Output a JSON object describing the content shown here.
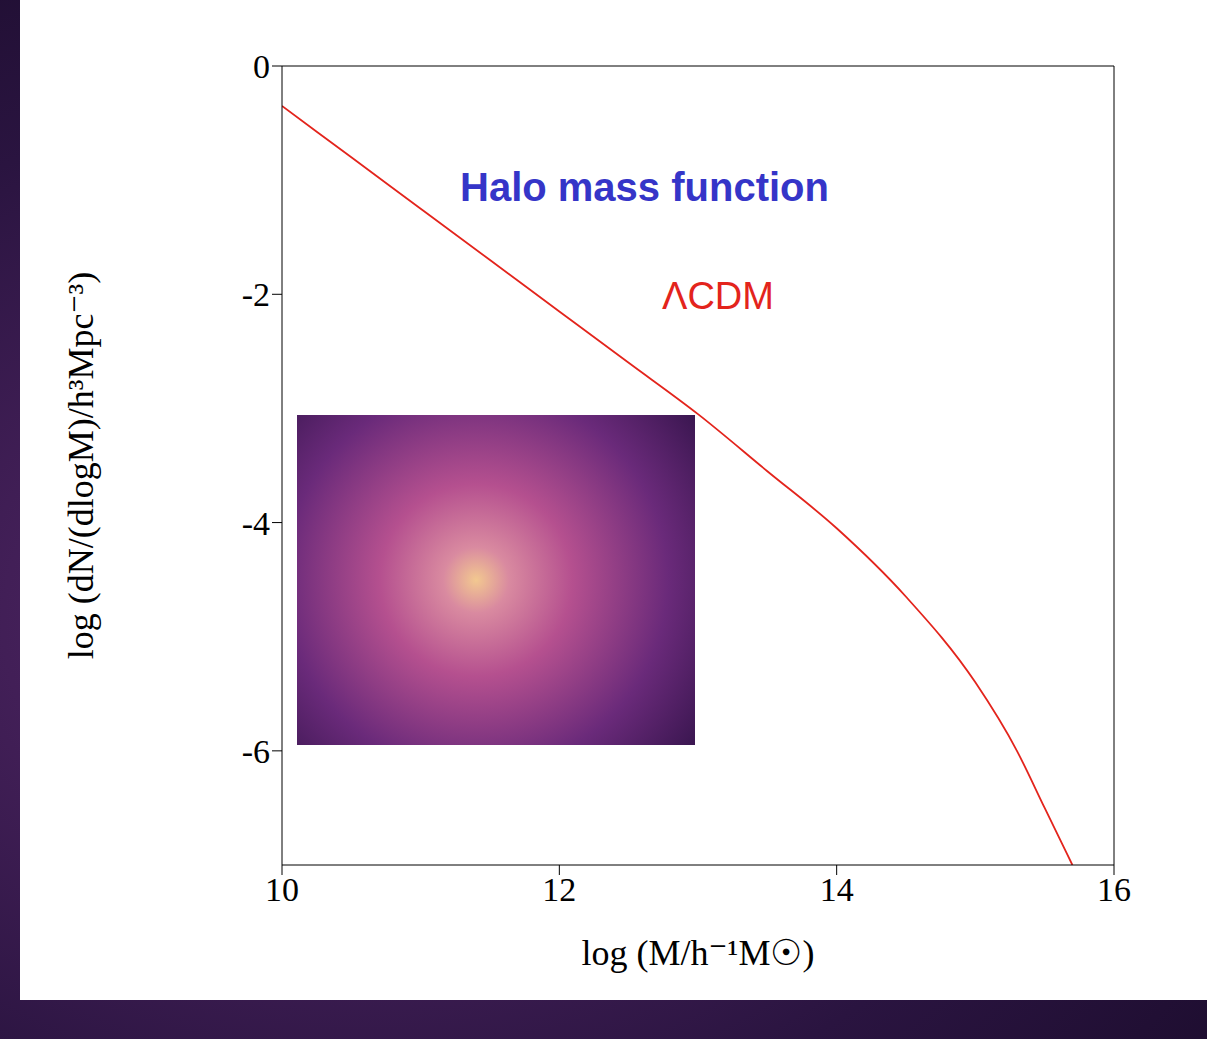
{
  "chart_data": {
    "type": "line",
    "title": "Halo mass function",
    "x_label": "log (M/h⁻¹M☉)",
    "y_label": "log (dN/(dlogM)/h³Mpc⁻³)",
    "x": [
      10,
      10.5,
      11,
      11.5,
      12,
      12.5,
      13,
      13.5,
      14,
      14.5,
      15,
      15.3,
      15.5,
      15.7
    ],
    "series": [
      {
        "name": "ΛCDM",
        "color": "#e3241c",
        "values": [
          -0.35,
          -0.8,
          -1.25,
          -1.7,
          -2.15,
          -2.6,
          -3.05,
          -3.55,
          -4.05,
          -4.65,
          -5.4,
          -6.0,
          -6.5,
          -7.0
        ]
      }
    ],
    "xlim": [
      10,
      16
    ],
    "ylim": [
      -7,
      0
    ],
    "xticks": [
      10,
      12,
      14,
      16
    ],
    "yticks": [
      0,
      -2,
      -4,
      -6
    ],
    "grid": false
  }
}
